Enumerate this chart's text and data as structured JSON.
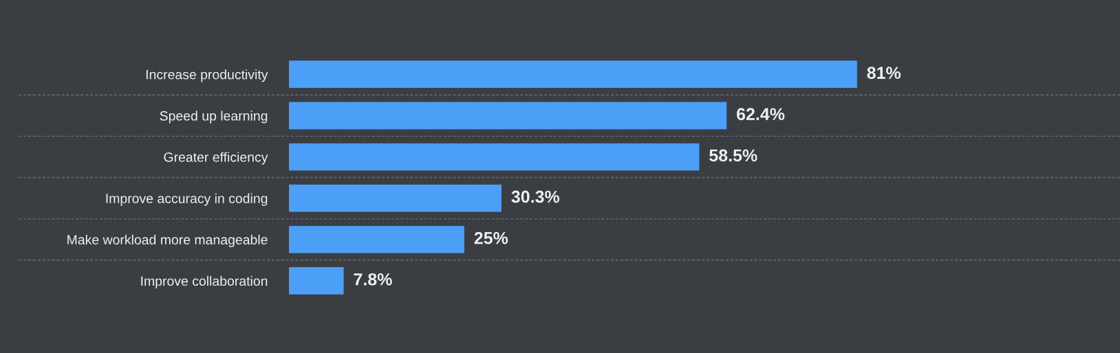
{
  "chart_data": {
    "type": "bar",
    "orientation": "horizontal",
    "categories": [
      "Increase productivity",
      "Speed up learning",
      "Greater efficiency",
      "Improve accuracy in coding",
      "Make workload more manageable",
      "Improve collaboration"
    ],
    "series": [
      {
        "color": "#4c9ff7",
        "values": [
          81,
          62.4,
          58.5,
          30.3,
          25,
          7.8
        ],
        "value_labels": [
          "81%",
          "62.4%",
          "58.5%",
          "30.3%",
          "25%",
          "7.8%"
        ]
      }
    ],
    "grid": "y"
  }
}
